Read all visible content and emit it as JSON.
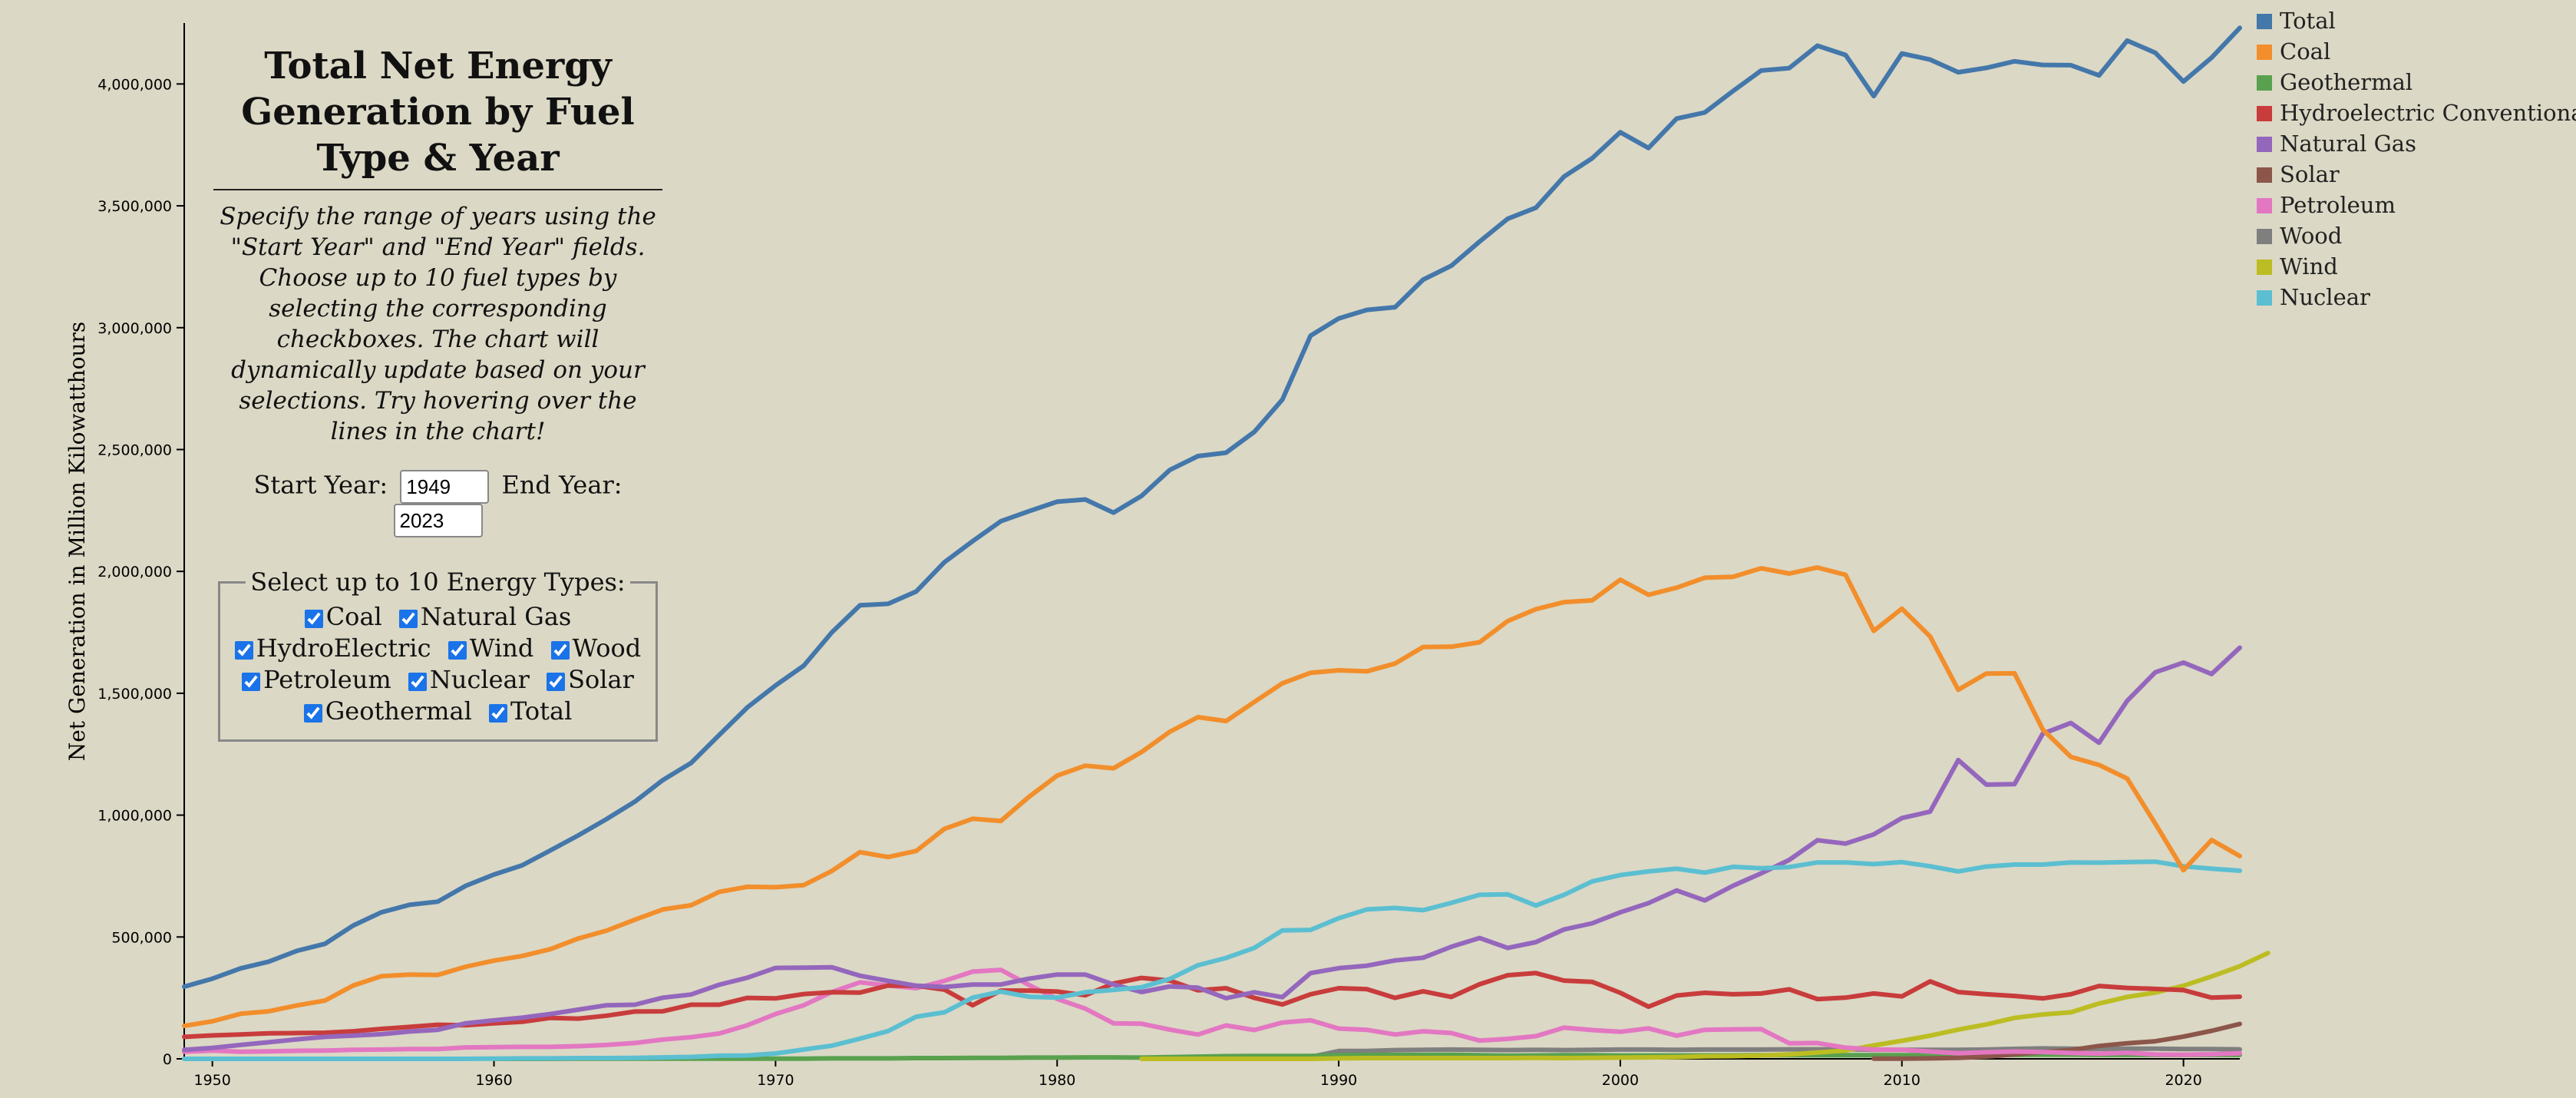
{
  "panel": {
    "title": "Total Net Energy Generation by Fuel Type & Year",
    "description": "Specify the range of years using the \"Start Year\" and \"End Year\" fields. Choose up to 10 fuel types by selecting the corresponding checkboxes. The chart will dynamically update based on your selections. Try hovering over the lines in the chart!",
    "start_year_label": "Start Year:",
    "start_year_value": "1949",
    "end_year_label": "End Year:",
    "end_year_value": "2023",
    "types_legend": "Select up to 10 Energy Types:",
    "checkboxes": [
      {
        "label": "Coal",
        "checked": true
      },
      {
        "label": "Natural Gas",
        "checked": true
      },
      {
        "label": "HydroElectric",
        "checked": true
      },
      {
        "label": "Wind",
        "checked": true
      },
      {
        "label": "Wood",
        "checked": true
      },
      {
        "label": "Petroleum",
        "checked": true
      },
      {
        "label": "Nuclear",
        "checked": true
      },
      {
        "label": "Solar",
        "checked": true
      },
      {
        "label": "Geothermal",
        "checked": true
      },
      {
        "label": "Total",
        "checked": true
      }
    ]
  },
  "chart_data": {
    "type": "line",
    "ylabel": "Net Generation in Million Kilowatthours",
    "xlim": [
      1949,
      2022
    ],
    "ylim": [
      0,
      4250000
    ],
    "x_ticks": [
      1950,
      1960,
      1970,
      1980,
      1990,
      2000,
      2010,
      2020
    ],
    "y_ticks": [
      0,
      500000,
      1000000,
      1500000,
      2000000,
      2500000,
      3000000,
      3500000,
      4000000
    ],
    "y_tick_labels": [
      "0",
      "500,000",
      "1,000,000",
      "1,500,000",
      "2,000,000",
      "2,500,000",
      "3,000,000",
      "3,500,000",
      "4,000,000"
    ],
    "legend_position": "top-right",
    "series": [
      {
        "name": "Total",
        "color": "#4477aa",
        "start": 1949,
        "values": [
          296000,
          329000,
          371000,
          399000,
          443000,
          472000,
          547000,
          601000,
          632000,
          645000,
          710000,
          756000,
          794000,
          855000,
          917000,
          984000,
          1055000,
          1144000,
          1214000,
          1329000,
          1442000,
          1532000,
          1613000,
          1750000,
          1861000,
          1867000,
          1918000,
          2038000,
          2124000,
          2206000,
          2247000,
          2286000,
          2295000,
          2241000,
          2310000,
          2416000,
          2473000,
          2487000,
          2572000,
          2705000,
          2967000,
          3038000,
          3073000,
          3084000,
          3197000,
          3254000,
          3353000,
          3447000,
          3492000,
          3620000,
          3695000,
          3802000,
          3737000,
          3858000,
          3883000,
          3971000,
          4055000,
          4065000,
          4157000,
          4119000,
          3950000,
          4125000,
          4100000,
          4048000,
          4066000,
          4093000,
          4078000,
          4077000,
          4035000,
          4178000,
          4128000,
          4010000,
          4108000,
          4230000
        ]
      },
      {
        "name": "Coal",
        "color": "#f28e2b",
        "start": 1949,
        "values": [
          135000,
          154000,
          185000,
          195000,
          219000,
          239000,
          301000,
          339000,
          346000,
          344000,
          378000,
          403000,
          422000,
          450000,
          494000,
          526000,
          571000,
          613000,
          630000,
          685000,
          706000,
          704000,
          713000,
          771000,
          848000,
          828000,
          853000,
          944000,
          985000,
          976000,
          1075000,
          1162000,
          1203000,
          1192000,
          1259000,
          1342000,
          1402000,
          1386000,
          1464000,
          1541000,
          1584000,
          1594000,
          1590000,
          1622000,
          1690000,
          1691000,
          1709000,
          1796000,
          1845000,
          1874000,
          1881000,
          1966000,
          1904000,
          1933000,
          1974000,
          1978000,
          2013000,
          1991000,
          2016000,
          1986000,
          1756000,
          1847000,
          1733000,
          1514000,
          1581000,
          1582000,
          1352000,
          1239000,
          1206000,
          1150000,
          965000,
          774000,
          898000,
          832000
        ]
      },
      {
        "name": "Geothermal",
        "color": "#59a14f",
        "start": 1960,
        "values": [
          0,
          0,
          0,
          1000,
          1000,
          1000,
          1000,
          1000,
          1000,
          1000,
          1000,
          1000,
          2000,
          2000,
          2000,
          3000,
          3000,
          4000,
          4000,
          5000,
          5000,
          6000,
          6000,
          5000,
          7000,
          9000,
          11000,
          12000,
          12000,
          12000,
          15000,
          16000,
          16000,
          16000,
          17000,
          15000,
          13000,
          14000,
          15000,
          15000,
          14000,
          14000,
          14000,
          14000,
          14000,
          15000,
          15000,
          15000,
          15000,
          15000,
          15000,
          15000,
          17000,
          16000,
          16000,
          17000,
          17000,
          16000,
          16000,
          16000,
          16000,
          16000,
          16000
        ]
      },
      {
        "name": "Hydroelectric Conventional",
        "color": "#c83c3c",
        "start": 1949,
        "values": [
          90000,
          96000,
          100000,
          105000,
          106000,
          107000,
          113000,
          123000,
          131000,
          140000,
          138000,
          146000,
          152000,
          168000,
          165000,
          177000,
          194000,
          195000,
          222000,
          222000,
          250000,
          248000,
          266000,
          273000,
          272000,
          301000,
          300000,
          284000,
          220000,
          280000,
          280000,
          276000,
          261000,
          309000,
          332000,
          321000,
          281000,
          290000,
          250000,
          223000,
          265000,
          290000,
          286000,
          250000,
          277000,
          254000,
          306000,
          343000,
          352000,
          321000,
          316000,
          271000,
          214000,
          260000,
          271000,
          265000,
          268000,
          285000,
          245000,
          251000,
          268000,
          256000,
          318000,
          274000,
          265000,
          258000,
          248000,
          265000,
          299000,
          291000,
          287000,
          282000,
          251000,
          255000
        ]
      },
      {
        "name": "Natural Gas",
        "color": "#9467bd",
        "start": 1949,
        "values": [
          37000,
          45000,
          57000,
          68000,
          80000,
          90000,
          95000,
          101000,
          112000,
          119000,
          146000,
          158000,
          169000,
          184000,
          202000,
          220000,
          222000,
          251000,
          264000,
          304000,
          333000,
          373000,
          374000,
          376000,
          341000,
          320000,
          300000,
          295000,
          305000,
          305000,
          329000,
          346000,
          346000,
          305000,
          274000,
          297000,
          292000,
          249000,
          273000,
          253000,
          352000,
          372000,
          382000,
          404000,
          415000,
          460000,
          496000,
          455000,
          479000,
          531000,
          556000,
          601000,
          639000,
          691000,
          650000,
          710000,
          761000,
          816000,
          897000,
          883000,
          921000,
          988000,
          1014000,
          1226000,
          1125000,
          1127000,
          1334000,
          1378000,
          1297000,
          1469000,
          1586000,
          1626000,
          1579000,
          1687000
        ]
      },
      {
        "name": "Solar",
        "color": "#8c564b",
        "start": 2009,
        "values": [
          1000,
          1000,
          2000,
          4000,
          9000,
          18000,
          28000,
          36000,
          53000,
          64000,
          72000,
          91000,
          115000,
          143000
        ]
      },
      {
        "name": "Petroleum",
        "color": "#e377c2",
        "start": 1949,
        "values": [
          29000,
          34000,
          29000,
          31000,
          33000,
          34000,
          37000,
          38000,
          40000,
          40000,
          47000,
          48000,
          49000,
          49000,
          52000,
          57000,
          65000,
          79000,
          89000,
          104000,
          138000,
          184000,
          220000,
          274000,
          314000,
          301000,
          290000,
          320000,
          358000,
          365000,
          303000,
          246000,
          206000,
          146000,
          144000,
          120000,
          100000,
          137000,
          118000,
          149000,
          158000,
          124000,
          119000,
          100000,
          113000,
          106000,
          75000,
          82000,
          93000,
          128000,
          118000,
          111000,
          125000,
          95000,
          119000,
          121000,
          122000,
          64000,
          65000,
          46000,
          38000,
          37000,
          30000,
          23000,
          27000,
          30000,
          28000,
          24000,
          21000,
          25000,
          18000,
          17000,
          19000,
          23000
        ]
      },
      {
        "name": "Wood",
        "color": "#7f7f7f",
        "start": 1983,
        "values": [
          1000,
          2000,
          4000,
          5000,
          6000,
          8000,
          8000,
          32000,
          32000,
          36000,
          37000,
          38000,
          37000,
          36000,
          37000,
          36000,
          37000,
          38000,
          38000,
          37000,
          38000,
          38000,
          38000,
          39000,
          39000,
          39000,
          37000,
          37000,
          37000,
          37000,
          38000,
          41000,
          43000,
          42000,
          41000,
          42000,
          42000,
          40000,
          40000,
          39000
        ]
      },
      {
        "name": "Wind",
        "color": "#bcbd22",
        "start": 1983,
        "values": [
          0,
          0,
          0,
          0,
          0,
          0,
          0,
          2000,
          3000,
          3000,
          3000,
          3000,
          3000,
          3000,
          4000,
          3000,
          4000,
          5000,
          6000,
          7000,
          10000,
          11000,
          14000,
          18000,
          26000,
          34000,
          55000,
          74000,
          95000,
          120000,
          141000,
          168000,
          182000,
          191000,
          227000,
          254000,
          272000,
          300000,
          338000,
          380000,
          434000
        ]
      },
      {
        "name": "Nuclear",
        "color": "#5bbfd1",
        "start": 1949,
        "values": [
          0,
          0,
          0,
          0,
          0,
          0,
          0,
          0,
          0,
          0,
          0,
          1000,
          2000,
          2000,
          3000,
          3000,
          4000,
          6000,
          8000,
          13000,
          14000,
          22000,
          38000,
          54000,
          83000,
          114000,
          173000,
          191000,
          251000,
          276000,
          255000,
          251000,
          273000,
          283000,
          294000,
          328000,
          384000,
          414000,
          455000,
          527000,
          529000,
          577000,
          613000,
          619000,
          610000,
          640000,
          673000,
          675000,
          629000,
          673000,
          728000,
          754000,
          769000,
          780000,
          764000,
          788000,
          782000,
          787000,
          806000,
          806000,
          799000,
          807000,
          790000,
          769000,
          789000,
          797000,
          797000,
          806000,
          805000,
          807000,
          809000,
          790000,
          780000,
          772000
        ]
      },
      {
        "name": "Total",
        "color": "#4477aa",
        "start": 1949,
        "legend_only": true,
        "values": []
      }
    ],
    "legend": [
      "Total",
      "Coal",
      "Geothermal",
      "Hydroelectric Conventional",
      "Natural Gas",
      "Solar",
      "Petroleum",
      "Wood",
      "Wind",
      "Nuclear"
    ]
  }
}
